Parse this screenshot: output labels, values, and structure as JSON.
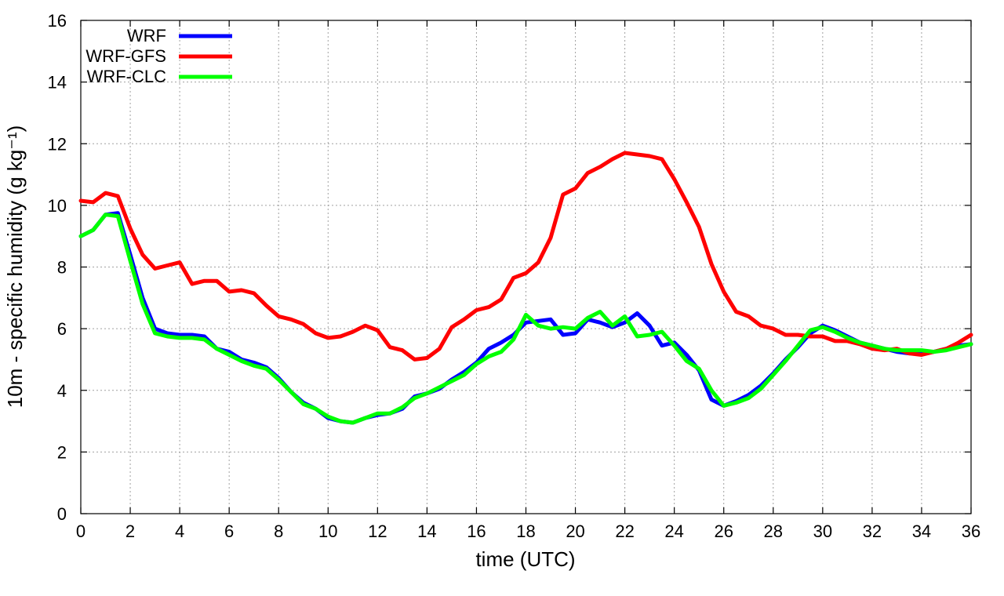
{
  "chart_data": {
    "type": "line",
    "xlabel": "time (UTC)",
    "ylabel": "10m - specific humidity (g kg⁻¹)",
    "xlim": [
      0,
      36
    ],
    "ylim": [
      0,
      16
    ],
    "xticks": [
      "0",
      "2",
      "4",
      "6",
      "8",
      "10",
      "12",
      "14",
      "16",
      "18",
      "20",
      "22",
      "24",
      "26",
      "28",
      "30",
      "32",
      "34",
      "36"
    ],
    "yticks": [
      "0",
      "2",
      "4",
      "6",
      "8",
      "10",
      "12",
      "14",
      "16"
    ],
    "grid": true,
    "legend_position": "top-left",
    "x": [
      0,
      0.5,
      1,
      1.5,
      2,
      2.5,
      3,
      3.5,
      4,
      4.5,
      5,
      5.5,
      6,
      6.5,
      7,
      7.5,
      8,
      8.5,
      9,
      9.5,
      10,
      10.5,
      11,
      11.5,
      12,
      12.5,
      13,
      13.5,
      14,
      14.5,
      15,
      15.5,
      16,
      16.5,
      17,
      17.5,
      18,
      18.5,
      19,
      19.5,
      20,
      20.5,
      21,
      21.5,
      22,
      22.5,
      23,
      23.5,
      24,
      24.5,
      25,
      25.5,
      26,
      26.5,
      27,
      27.5,
      28,
      28.5,
      29,
      29.5,
      30,
      30.5,
      31,
      31.5,
      32,
      32.5,
      33,
      33.5,
      34,
      34.5,
      35,
      35.5,
      36
    ],
    "series": [
      {
        "name": "WRF",
        "color": "#0000ff",
        "values": [
          9.0,
          9.2,
          9.7,
          9.75,
          8.4,
          7.0,
          6.0,
          5.85,
          5.8,
          5.8,
          5.75,
          5.35,
          5.25,
          5.0,
          4.9,
          4.75,
          4.4,
          3.95,
          3.6,
          3.4,
          3.1,
          3.0,
          2.95,
          3.1,
          3.2,
          3.25,
          3.4,
          3.8,
          3.9,
          4.05,
          4.35,
          4.6,
          4.9,
          5.35,
          5.55,
          5.8,
          6.2,
          6.25,
          6.3,
          5.8,
          5.85,
          6.3,
          6.2,
          6.05,
          6.2,
          6.5,
          6.1,
          5.45,
          5.55,
          5.15,
          4.65,
          3.7,
          3.5,
          3.65,
          3.85,
          4.15,
          4.55,
          5.0,
          5.4,
          5.85,
          6.1,
          5.95,
          5.75,
          5.55,
          5.45,
          5.35,
          5.25,
          5.2,
          5.2,
          5.25,
          5.35,
          5.45,
          5.5
        ]
      },
      {
        "name": "WRF-GFS",
        "color": "#ff0000",
        "values": [
          10.15,
          10.1,
          10.4,
          10.3,
          9.25,
          8.4,
          7.95,
          8.05,
          8.15,
          7.45,
          7.55,
          7.55,
          7.2,
          7.25,
          7.15,
          6.75,
          6.4,
          6.3,
          6.15,
          5.85,
          5.7,
          5.75,
          5.9,
          6.1,
          5.95,
          5.4,
          5.3,
          5.0,
          5.05,
          5.35,
          6.05,
          6.3,
          6.6,
          6.7,
          6.95,
          7.65,
          7.8,
          8.15,
          8.95,
          10.35,
          10.55,
          11.05,
          11.25,
          11.5,
          11.7,
          11.65,
          11.6,
          11.5,
          10.85,
          10.1,
          9.3,
          8.1,
          7.2,
          6.55,
          6.4,
          6.1,
          6.0,
          5.8,
          5.8,
          5.75,
          5.75,
          5.6,
          5.6,
          5.5,
          5.35,
          5.3,
          5.35,
          5.2,
          5.15,
          5.25,
          5.35,
          5.55,
          5.8
        ]
      },
      {
        "name": "WRF-CLC",
        "color": "#00ff00",
        "values": [
          9.0,
          9.2,
          9.7,
          9.65,
          8.2,
          6.8,
          5.85,
          5.75,
          5.7,
          5.7,
          5.65,
          5.35,
          5.15,
          4.95,
          4.8,
          4.7,
          4.35,
          3.95,
          3.55,
          3.4,
          3.15,
          3.0,
          2.95,
          3.1,
          3.25,
          3.25,
          3.45,
          3.75,
          3.9,
          4.1,
          4.3,
          4.5,
          4.85,
          5.1,
          5.25,
          5.65,
          6.45,
          6.1,
          6.0,
          6.05,
          6.0,
          6.35,
          6.55,
          6.1,
          6.4,
          5.75,
          5.8,
          5.9,
          5.45,
          4.95,
          4.7,
          4.0,
          3.5,
          3.6,
          3.75,
          4.05,
          4.5,
          4.95,
          5.45,
          5.95,
          6.05,
          5.9,
          5.7,
          5.55,
          5.45,
          5.35,
          5.3,
          5.3,
          5.3,
          5.25,
          5.3,
          5.4,
          5.5
        ]
      }
    ]
  }
}
